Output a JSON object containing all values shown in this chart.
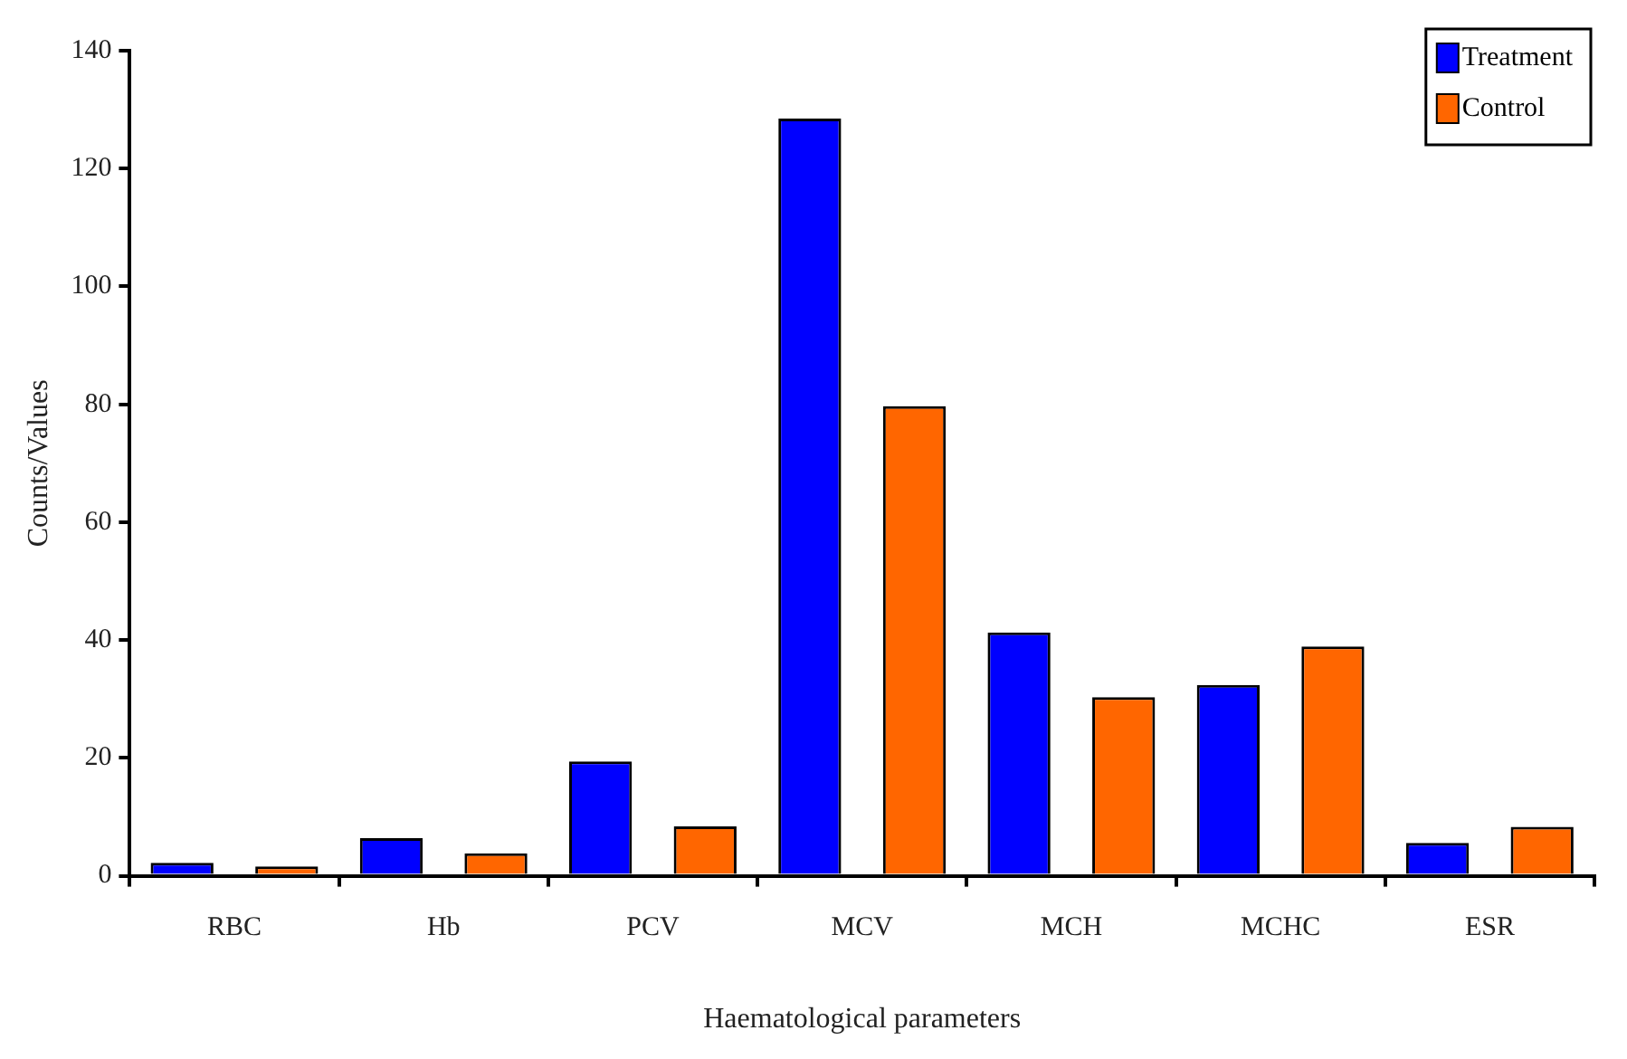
{
  "chart_data": {
    "type": "bar",
    "xlabel": "Haematological parameters",
    "ylabel": "Counts/Values",
    "categories": [
      "RBC",
      "Hb",
      "PCV",
      "MCV",
      "MCH",
      "MCHC",
      "ESR"
    ],
    "series": [
      {
        "name": "Treatment",
        "color": "#0000ff",
        "values": [
          2.2,
          6.4,
          19.4,
          128.5,
          41.3,
          32.4,
          5.6
        ]
      },
      {
        "name": "Control",
        "color": "#ff6600",
        "values": [
          1.6,
          3.8,
          8.4,
          79.7,
          30.3,
          38.9,
          8.3
        ]
      }
    ],
    "ylim": [
      0,
      140
    ],
    "yticks": [
      0,
      20,
      40,
      60,
      80,
      100,
      120,
      140
    ],
    "grid": false,
    "legend": "top right"
  }
}
